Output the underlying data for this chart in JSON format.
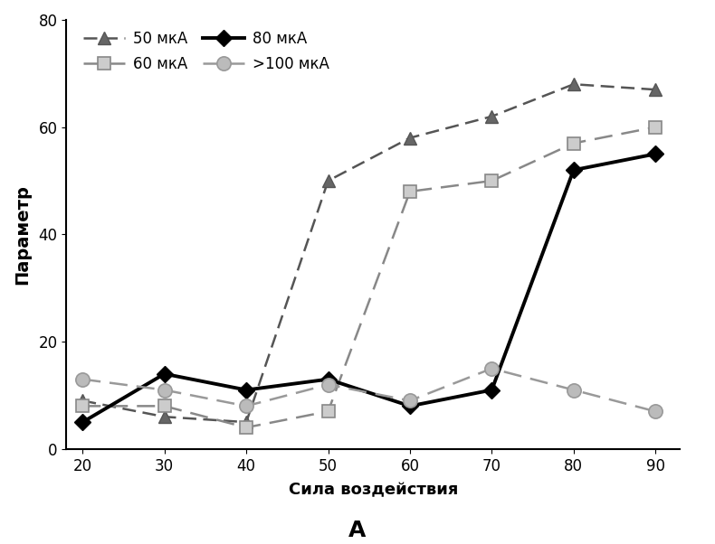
{
  "x": [
    20,
    30,
    40,
    50,
    60,
    70,
    80,
    90
  ],
  "series_50": [
    9,
    6,
    5,
    50,
    58,
    62,
    68,
    67
  ],
  "series_60": [
    8,
    8,
    4,
    7,
    48,
    50,
    57,
    60
  ],
  "series_80": [
    5,
    14,
    11,
    13,
    8,
    11,
    52,
    55
  ],
  "series_100": [
    13,
    11,
    8,
    12,
    9,
    15,
    11,
    7
  ],
  "color_50": "#555555",
  "color_60": "#888888",
  "color_80": "#000000",
  "color_100": "#999999",
  "ylabel": "Параметр",
  "xlabel": "Сила воздействия",
  "caption": "А",
  "ylim": [
    0,
    80
  ],
  "xlim": [
    18,
    93
  ],
  "yticks": [
    0,
    20,
    40,
    60,
    80
  ],
  "xticks": [
    20,
    30,
    40,
    50,
    60,
    70,
    80,
    90
  ],
  "legend_50": "50 мкА",
  "legend_60": "60 мкА",
  "legend_80": "80 мкА",
  "legend_100": ">100 мкА",
  "marker_50_face": "#666666",
  "marker_60_face": "#cccccc",
  "marker_80_face": "#000000",
  "marker_100_face": "#bbbbbb"
}
